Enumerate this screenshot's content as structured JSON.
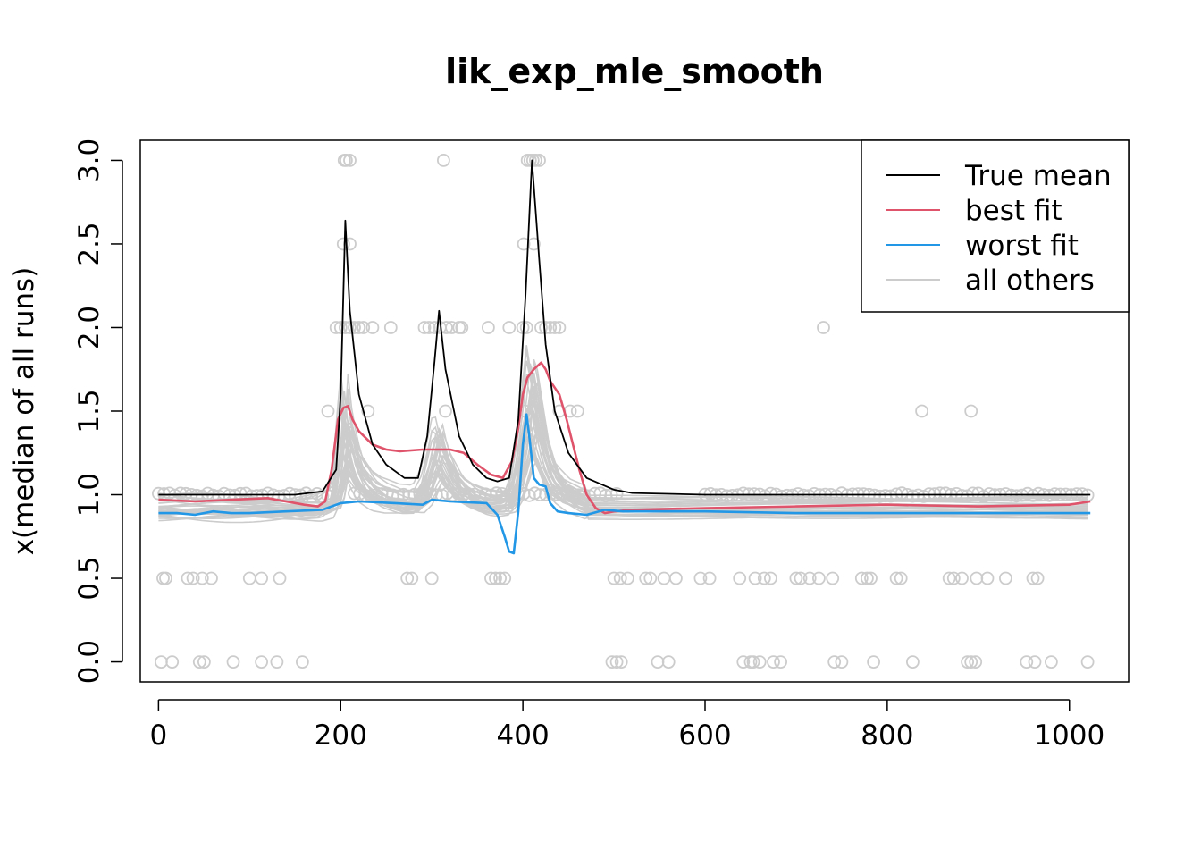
{
  "chart_data": {
    "type": "line",
    "title": "lik_exp_mle_smooth",
    "xlabel": "",
    "ylabel": "x(median of all runs)",
    "xlim": [
      -20,
      1065
    ],
    "ylim": [
      -0.12,
      3.12
    ],
    "x_ticks": [
      0,
      200,
      400,
      600,
      800,
      1000
    ],
    "x_tick_labels": [
      "0",
      "200",
      "400",
      "600",
      "800",
      "1000"
    ],
    "y_ticks": [
      0.0,
      0.5,
      1.0,
      1.5,
      2.0,
      2.5,
      3.0
    ],
    "y_tick_labels": [
      "0.0",
      "0.5",
      "1.0",
      "1.5",
      "2.0",
      "2.5",
      "3.0"
    ],
    "legend": {
      "position": "top-right",
      "entries": [
        {
          "label": "True mean",
          "color": "#000000"
        },
        {
          "label": "best fit",
          "color": "#DF536B"
        },
        {
          "label": "worst fit",
          "color": "#2297E6"
        },
        {
          "label": "all others",
          "color": "#CCCCCC"
        }
      ]
    },
    "series": [
      {
        "name": "True mean",
        "color": "#000000",
        "x": [
          0,
          150,
          180,
          195,
          200,
          205,
          210,
          220,
          235,
          250,
          270,
          285,
          295,
          303,
          308,
          315,
          330,
          345,
          360,
          372,
          385,
          395,
          403,
          410,
          418,
          425,
          435,
          450,
          470,
          500,
          520,
          600,
          800,
          1000,
          1023
        ],
        "y": [
          1.0,
          1.0,
          1.02,
          1.15,
          1.6,
          2.64,
          2.1,
          1.6,
          1.3,
          1.18,
          1.1,
          1.1,
          1.35,
          1.8,
          2.1,
          1.75,
          1.35,
          1.18,
          1.1,
          1.08,
          1.1,
          1.45,
          2.2,
          3.0,
          2.4,
          1.9,
          1.5,
          1.25,
          1.1,
          1.03,
          1.01,
          1.0,
          1.0,
          1.0,
          1.0
        ]
      },
      {
        "name": "best fit",
        "color": "#DF536B",
        "x": [
          0,
          40,
          80,
          120,
          160,
          175,
          183,
          190,
          197,
          203,
          208,
          213,
          220,
          235,
          250,
          265,
          290,
          320,
          335,
          350,
          365,
          378,
          388,
          395,
          400,
          405,
          412,
          420,
          425,
          430,
          440,
          448,
          455,
          462,
          470,
          480,
          490,
          500,
          520,
          600,
          700,
          800,
          900,
          1000,
          1023
        ],
        "y": [
          0.97,
          0.96,
          0.97,
          0.98,
          0.94,
          0.93,
          0.96,
          1.15,
          1.45,
          1.52,
          1.53,
          1.45,
          1.38,
          1.3,
          1.27,
          1.26,
          1.27,
          1.27,
          1.25,
          1.18,
          1.12,
          1.1,
          1.2,
          1.4,
          1.6,
          1.7,
          1.75,
          1.79,
          1.75,
          1.68,
          1.6,
          1.45,
          1.3,
          1.15,
          1.0,
          0.92,
          0.89,
          0.9,
          0.91,
          0.92,
          0.93,
          0.94,
          0.93,
          0.94,
          0.96
        ]
      },
      {
        "name": "worst fit",
        "color": "#2297E6",
        "x": [
          0,
          20,
          40,
          60,
          80,
          100,
          140,
          180,
          200,
          220,
          260,
          290,
          300,
          320,
          360,
          372,
          380,
          385,
          390,
          395,
          400,
          404,
          407,
          412,
          418,
          425,
          430,
          438,
          450,
          470,
          490,
          510,
          600,
          700,
          800,
          900,
          1023
        ],
        "y": [
          0.89,
          0.89,
          0.88,
          0.9,
          0.89,
          0.89,
          0.9,
          0.91,
          0.95,
          0.96,
          0.95,
          0.94,
          0.97,
          0.96,
          0.95,
          0.88,
          0.75,
          0.66,
          0.65,
          0.9,
          1.3,
          1.48,
          1.35,
          1.1,
          1.06,
          1.05,
          0.95,
          0.9,
          0.89,
          0.88,
          0.91,
          0.9,
          0.9,
          0.89,
          0.89,
          0.89,
          0.89
        ]
      }
    ],
    "others": {
      "name": "all others",
      "color": "#CCCCCC",
      "count": 30
    },
    "points": [
      {
        "x": 204,
        "y": 3.0
      },
      {
        "x": 206,
        "y": 3.0
      },
      {
        "x": 210,
        "y": 3.0
      },
      {
        "x": 313,
        "y": 3.0
      },
      {
        "x": 405,
        "y": 3.0
      },
      {
        "x": 408,
        "y": 3.0
      },
      {
        "x": 411,
        "y": 3.0
      },
      {
        "x": 414,
        "y": 3.0
      },
      {
        "x": 418,
        "y": 3.0
      },
      {
        "x": 401,
        "y": 2.5
      },
      {
        "x": 412,
        "y": 2.5
      },
      {
        "x": 203,
        "y": 2.5
      },
      {
        "x": 210,
        "y": 2.5
      },
      {
        "x": 195,
        "y": 2.0
      },
      {
        "x": 200,
        "y": 2.0
      },
      {
        "x": 205,
        "y": 2.0
      },
      {
        "x": 210,
        "y": 2.0
      },
      {
        "x": 215,
        "y": 2.0
      },
      {
        "x": 220,
        "y": 2.0
      },
      {
        "x": 225,
        "y": 2.0
      },
      {
        "x": 235,
        "y": 2.0
      },
      {
        "x": 255,
        "y": 2.0
      },
      {
        "x": 292,
        "y": 2.0
      },
      {
        "x": 297,
        "y": 2.0
      },
      {
        "x": 303,
        "y": 2.0
      },
      {
        "x": 309,
        "y": 2.0
      },
      {
        "x": 316,
        "y": 2.0
      },
      {
        "x": 322,
        "y": 2.0
      },
      {
        "x": 330,
        "y": 2.0
      },
      {
        "x": 333,
        "y": 2.0
      },
      {
        "x": 362,
        "y": 2.0
      },
      {
        "x": 385,
        "y": 2.0
      },
      {
        "x": 400,
        "y": 2.0
      },
      {
        "x": 404,
        "y": 2.0
      },
      {
        "x": 420,
        "y": 2.0
      },
      {
        "x": 425,
        "y": 2.0
      },
      {
        "x": 430,
        "y": 2.0
      },
      {
        "x": 435,
        "y": 2.0
      },
      {
        "x": 440,
        "y": 2.0
      },
      {
        "x": 730,
        "y": 2.0
      },
      {
        "x": 186,
        "y": 1.5
      },
      {
        "x": 230,
        "y": 1.5
      },
      {
        "x": 315,
        "y": 1.5
      },
      {
        "x": 402,
        "y": 1.5
      },
      {
        "x": 440,
        "y": 1.5
      },
      {
        "x": 452,
        "y": 1.5
      },
      {
        "x": 460,
        "y": 1.5
      },
      {
        "x": 838,
        "y": 1.5
      },
      {
        "x": 892,
        "y": 1.5
      },
      {
        "x": 5,
        "y": 0.5
      },
      {
        "x": 8,
        "y": 0.5
      },
      {
        "x": 32,
        "y": 0.5
      },
      {
        "x": 38,
        "y": 0.5
      },
      {
        "x": 48,
        "y": 0.5
      },
      {
        "x": 58,
        "y": 0.5
      },
      {
        "x": 100,
        "y": 0.5
      },
      {
        "x": 113,
        "y": 0.5
      },
      {
        "x": 133,
        "y": 0.5
      },
      {
        "x": 273,
        "y": 0.5
      },
      {
        "x": 278,
        "y": 0.5
      },
      {
        "x": 300,
        "y": 0.5
      },
      {
        "x": 365,
        "y": 0.5
      },
      {
        "x": 370,
        "y": 0.5
      },
      {
        "x": 375,
        "y": 0.5
      },
      {
        "x": 380,
        "y": 0.5
      },
      {
        "x": 500,
        "y": 0.5
      },
      {
        "x": 507,
        "y": 0.5
      },
      {
        "x": 515,
        "y": 0.5
      },
      {
        "x": 535,
        "y": 0.5
      },
      {
        "x": 540,
        "y": 0.5
      },
      {
        "x": 555,
        "y": 0.5
      },
      {
        "x": 568,
        "y": 0.5
      },
      {
        "x": 595,
        "y": 0.5
      },
      {
        "x": 605,
        "y": 0.5
      },
      {
        "x": 638,
        "y": 0.5
      },
      {
        "x": 655,
        "y": 0.5
      },
      {
        "x": 665,
        "y": 0.5
      },
      {
        "x": 672,
        "y": 0.5
      },
      {
        "x": 700,
        "y": 0.5
      },
      {
        "x": 705,
        "y": 0.5
      },
      {
        "x": 715,
        "y": 0.5
      },
      {
        "x": 725,
        "y": 0.5
      },
      {
        "x": 740,
        "y": 0.5
      },
      {
        "x": 772,
        "y": 0.5
      },
      {
        "x": 778,
        "y": 0.5
      },
      {
        "x": 782,
        "y": 0.5
      },
      {
        "x": 810,
        "y": 0.5
      },
      {
        "x": 815,
        "y": 0.5
      },
      {
        "x": 868,
        "y": 0.5
      },
      {
        "x": 873,
        "y": 0.5
      },
      {
        "x": 882,
        "y": 0.5
      },
      {
        "x": 898,
        "y": 0.5
      },
      {
        "x": 910,
        "y": 0.5
      },
      {
        "x": 930,
        "y": 0.5
      },
      {
        "x": 960,
        "y": 0.5
      },
      {
        "x": 965,
        "y": 0.5
      },
      {
        "x": 3,
        "y": 0.0
      },
      {
        "x": 15,
        "y": 0.0
      },
      {
        "x": 45,
        "y": 0.0
      },
      {
        "x": 50,
        "y": 0.0
      },
      {
        "x": 82,
        "y": 0.0
      },
      {
        "x": 113,
        "y": 0.0
      },
      {
        "x": 130,
        "y": 0.0
      },
      {
        "x": 158,
        "y": 0.0
      },
      {
        "x": 498,
        "y": 0.0
      },
      {
        "x": 503,
        "y": 0.0
      },
      {
        "x": 508,
        "y": 0.0
      },
      {
        "x": 548,
        "y": 0.0
      },
      {
        "x": 560,
        "y": 0.0
      },
      {
        "x": 642,
        "y": 0.0
      },
      {
        "x": 650,
        "y": 0.0
      },
      {
        "x": 653,
        "y": 0.0
      },
      {
        "x": 660,
        "y": 0.0
      },
      {
        "x": 675,
        "y": 0.0
      },
      {
        "x": 683,
        "y": 0.0
      },
      {
        "x": 742,
        "y": 0.0
      },
      {
        "x": 750,
        "y": 0.0
      },
      {
        "x": 785,
        "y": 0.0
      },
      {
        "x": 828,
        "y": 0.0
      },
      {
        "x": 888,
        "y": 0.0
      },
      {
        "x": 892,
        "y": 0.0
      },
      {
        "x": 897,
        "y": 0.0
      },
      {
        "x": 953,
        "y": 0.0
      },
      {
        "x": 962,
        "y": 0.0
      },
      {
        "x": 980,
        "y": 0.0
      },
      {
        "x": 1020,
        "y": 0.0
      }
    ]
  }
}
